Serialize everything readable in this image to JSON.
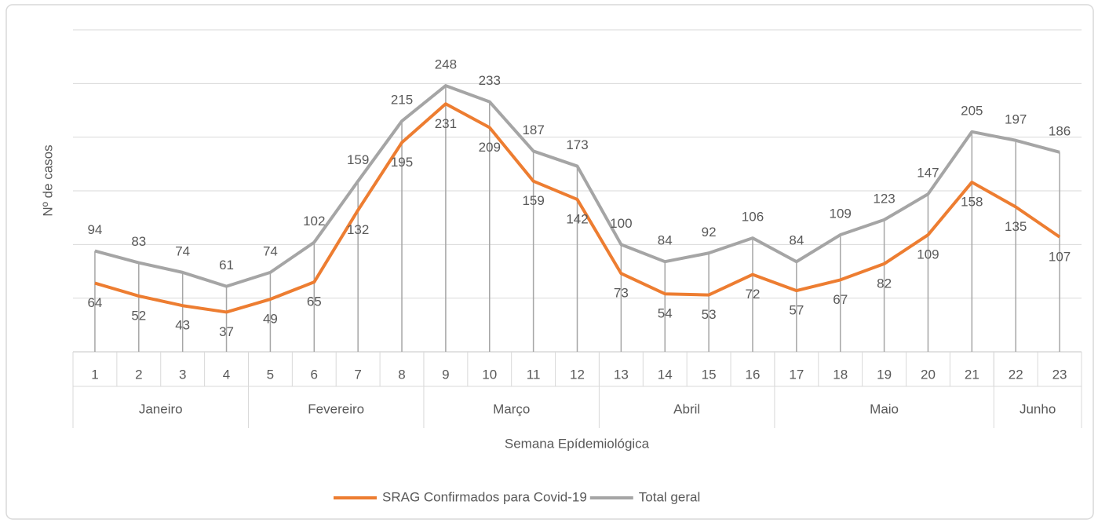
{
  "chart_data": {
    "type": "line",
    "y_label": "Nº de casos",
    "x_label": "Semana Epídemiológica",
    "categories": [
      "1",
      "2",
      "3",
      "4",
      "5",
      "6",
      "7",
      "8",
      "9",
      "10",
      "11",
      "12",
      "13",
      "14",
      "15",
      "16",
      "17",
      "18",
      "19",
      "20",
      "21",
      "22",
      "23"
    ],
    "x_groups": [
      "Janeiro",
      "Janeiro",
      "Janeiro",
      "Janeiro",
      "Fevereiro",
      "Fevereiro",
      "Fevereiro",
      "Fevereiro",
      "Março",
      "Março",
      "Março",
      "Março",
      "Abril",
      "Abril",
      "Abril",
      "Abril",
      "Maio",
      "Maio",
      "Maio",
      "Maio",
      "Maio",
      "Junho",
      "Junho"
    ],
    "series": [
      {
        "name": "SRAG Confirmados para Covid-19",
        "color": "#ed7d31",
        "values": [
          64,
          52,
          43,
          37,
          49,
          65,
          132,
          195,
          231,
          209,
          159,
          142,
          73,
          54,
          53,
          72,
          57,
          67,
          82,
          109,
          158,
          135,
          107
        ]
      },
      {
        "name": "Total geral",
        "color": "#a5a5a5",
        "values": [
          94,
          83,
          74,
          61,
          74,
          102,
          159,
          215,
          248,
          233,
          187,
          173,
          100,
          84,
          92,
          106,
          84,
          109,
          123,
          147,
          205,
          197,
          186
        ]
      }
    ],
    "ylim": [
      0,
      300
    ],
    "yticks": [
      0,
      50,
      100,
      150,
      200,
      250,
      300
    ],
    "grid": true,
    "legend": "bottom"
  }
}
